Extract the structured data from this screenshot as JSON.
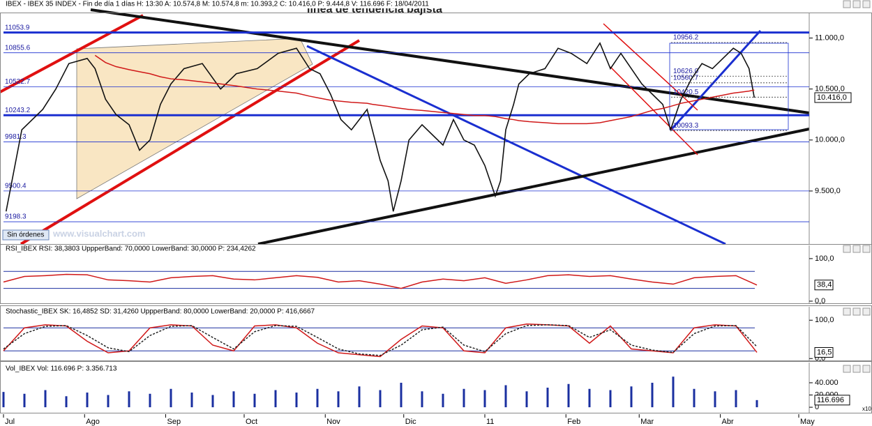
{
  "orders": "Sin órdenes",
  "watermark": "www.visualchart.com",
  "x_scale_note": "x10",
  "chart_data": [
    {
      "type": "line",
      "title": "IBEX - IBEX 35 INDEX - Fin de día 1 días H: 13:30 A: 10.574,8 M: 10.574,8 m: 10.393,2 C: 10.416,0 P: 9.444,8 V: 116.696 F: 18/04/2011",
      "annotation": "línea de tendencia bajista",
      "xlim": [
        0,
        308
      ],
      "xticks": [
        {
          "value": 0,
          "label": "Jul"
        },
        {
          "value": 31,
          "label": "Ago"
        },
        {
          "value": 62,
          "label": "Sep"
        },
        {
          "value": 92,
          "label": "Oct"
        },
        {
          "value": 123,
          "label": "Nov"
        },
        {
          "value": 153,
          "label": "Dic"
        },
        {
          "value": 184,
          "label": "11"
        },
        {
          "value": 215,
          "label": "Feb"
        },
        {
          "value": 243,
          "label": "Mar"
        },
        {
          "value": 274,
          "label": "Abr"
        },
        {
          "value": 304,
          "label": "May"
        }
      ],
      "ylim": [
        8980,
        11250
      ],
      "yticks": [
        {
          "value": 11000,
          "label": "11.000,0"
        },
        {
          "value": 10500,
          "label": "10.500,0"
        },
        {
          "value": 10000,
          "label": "10.000,0"
        },
        {
          "value": 9500,
          "label": "9.500,0"
        }
      ],
      "x": [
        1,
        7,
        15,
        20,
        25,
        32,
        35,
        39,
        43,
        48,
        52,
        56,
        60,
        64,
        69,
        76,
        83,
        89,
        97,
        105,
        112,
        117,
        121,
        125,
        129,
        133,
        139,
        141,
        144,
        147,
        149,
        152,
        155,
        160,
        164,
        168,
        172,
        176,
        180,
        184,
        188,
        190,
        192,
        195,
        197,
        201,
        207,
        212,
        217,
        223,
        228,
        232,
        236,
        240,
        244,
        248,
        252,
        255,
        259,
        263,
        267,
        271,
        275,
        279,
        282,
        285,
        287
      ],
      "series": [
        {
          "color": "#111111",
          "values": [
            9300,
            10100,
            10300,
            10500,
            10750,
            10800,
            10700,
            10400,
            10250,
            10150,
            9900,
            10000,
            10350,
            10550,
            10700,
            10750,
            10500,
            10650,
            10700,
            10850,
            10900,
            10700,
            10650,
            10450,
            10200,
            10100,
            10300,
            10100,
            9800,
            9600,
            9300,
            9600,
            10000,
            10150,
            10050,
            9950,
            10200,
            10000,
            9950,
            9750,
            9450,
            9600,
            10100,
            10350,
            10550,
            10650,
            10700,
            10900,
            10850,
            10750,
            10950,
            10700,
            10850,
            10700,
            10550,
            10450,
            10350,
            10100,
            10400,
            10600,
            10750,
            10700,
            10800,
            10900,
            10850,
            10700,
            10416
          ]
        },
        {
          "color": "#d01818",
          "values": [
            null,
            null,
            null,
            null,
            null,
            null,
            10830,
            10760,
            10720,
            10690,
            10670,
            10650,
            10620,
            10600,
            10590,
            10570,
            10550,
            10530,
            10500,
            10480,
            10460,
            10430,
            10410,
            10390,
            10380,
            10370,
            10360,
            10350,
            10340,
            10330,
            10320,
            10310,
            10300,
            10290,
            10280,
            10270,
            10260,
            10250,
            10240,
            10240,
            10230,
            10220,
            10210,
            10200,
            10190,
            10180,
            10170,
            10160,
            10160,
            10160,
            10170,
            10190,
            10210,
            10230,
            10260,
            10290,
            10310,
            10330,
            10360,
            10380,
            10400,
            10420,
            10440,
            10460,
            10470,
            10480,
            10490
          ]
        }
      ],
      "levels": [
        {
          "value": 11053.9,
          "label": "11053.9",
          "thick": true
        },
        {
          "value": 10855.6,
          "label": "10855.6",
          "thick": false
        },
        {
          "value": 10522.7,
          "label": "10522.7",
          "thick": false
        },
        {
          "value": 10243.2,
          "label": "10243.2",
          "thick": true
        },
        {
          "value": 9981.3,
          "label": "9981.3",
          "thick": false
        },
        {
          "value": 9500.4,
          "label": "9500.4",
          "thick": false
        },
        {
          "value": 9198.3,
          "label": "9198.3",
          "thick": false
        }
      ],
      "fib_levels": [
        {
          "value": 10956.2,
          "label": "10956.2"
        },
        {
          "value": 10626.0,
          "label": "10626.0"
        },
        {
          "value": 10560.7,
          "label": "10560.7"
        },
        {
          "value": 10420.5,
          "label": "10420.5"
        },
        {
          "value": 10093.3,
          "label": "10093.3"
        }
      ],
      "last_label": "10.416,0"
    },
    {
      "type": "line",
      "title": "RSI_IBEX RSI: 38,3803 UppperBand: 70,0000 LowerBand: 30,0000 P: 234,4262",
      "xlim": [
        0,
        308
      ],
      "ylim": [
        -5,
        131
      ],
      "yticks": [
        {
          "value": 100,
          "label": "100,0"
        },
        {
          "value": 0,
          "label": "0,0"
        }
      ],
      "bands": [
        70,
        30
      ],
      "x": [
        0,
        8,
        16,
        24,
        32,
        40,
        48,
        56,
        64,
        72,
        80,
        88,
        96,
        104,
        112,
        120,
        128,
        136,
        144,
        152,
        160,
        168,
        176,
        184,
        192,
        200,
        208,
        216,
        224,
        232,
        240,
        248,
        256,
        264,
        272,
        280,
        288
      ],
      "series": [
        {
          "color": "#d01818",
          "values": [
            45,
            58,
            60,
            63,
            62,
            50,
            48,
            45,
            55,
            58,
            60,
            52,
            50,
            55,
            60,
            56,
            45,
            48,
            40,
            30,
            45,
            52,
            48,
            55,
            42,
            50,
            60,
            62,
            58,
            60,
            52,
            45,
            40,
            55,
            58,
            60,
            38
          ]
        }
      ],
      "last_label": "38,4"
    },
    {
      "type": "line",
      "title": "Stochastic_IBEX SK: 16,4852 SD: 31,4260 UppperBand: 80,0000 LowerBand: 20,0000 P: 416,6667",
      "xlim": [
        0,
        308
      ],
      "ylim": [
        -5,
        135
      ],
      "yticks": [
        {
          "value": 100,
          "label": "100,0"
        },
        {
          "value": 0,
          "label": "0,0"
        }
      ],
      "bands": [
        80,
        20
      ],
      "x": [
        0,
        8,
        16,
        24,
        32,
        40,
        48,
        56,
        64,
        72,
        80,
        88,
        96,
        104,
        112,
        120,
        128,
        136,
        144,
        152,
        160,
        168,
        176,
        184,
        192,
        200,
        208,
        216,
        224,
        232,
        240,
        248,
        256,
        264,
        272,
        280,
        288
      ],
      "series": [
        {
          "color": "#d01818",
          "values": [
            20,
            80,
            88,
            85,
            45,
            15,
            20,
            80,
            88,
            85,
            35,
            20,
            85,
            88,
            80,
            40,
            15,
            10,
            5,
            50,
            85,
            80,
            20,
            15,
            80,
            90,
            88,
            85,
            40,
            85,
            25,
            20,
            15,
            80,
            88,
            85,
            16
          ]
        },
        {
          "color": "#222222",
          "dashed": true,
          "values": [
            25,
            65,
            84,
            86,
            60,
            28,
            18,
            60,
            84,
            86,
            55,
            25,
            70,
            86,
            84,
            55,
            25,
            12,
            8,
            35,
            75,
            82,
            35,
            18,
            65,
            86,
            88,
            86,
            55,
            75,
            35,
            22,
            16,
            65,
            85,
            86,
            31
          ]
        }
      ],
      "last_label": "16,5"
    },
    {
      "type": "bar",
      "title": "Vol_IBEX Vol: 116.696 P: 3.356.713",
      "xlim": [
        0,
        308
      ],
      "ylim": [
        -9000,
        73000
      ],
      "yticks": [
        {
          "value": 40000,
          "label": "40.000"
        },
        {
          "value": 20000,
          "label": "20.000"
        },
        0
      ],
      "color": "#1a2fa0",
      "x": [
        0,
        8,
        16,
        24,
        32,
        40,
        48,
        56,
        64,
        72,
        80,
        88,
        96,
        104,
        112,
        120,
        128,
        136,
        144,
        152,
        160,
        168,
        176,
        184,
        192,
        200,
        208,
        216,
        224,
        232,
        240,
        248,
        256,
        264,
        272,
        280,
        288
      ],
      "values": [
        25000,
        22000,
        28000,
        18000,
        24000,
        20000,
        26000,
        22000,
        30000,
        24000,
        20000,
        26000,
        22000,
        28000,
        24000,
        30000,
        26000,
        34000,
        28000,
        40000,
        26000,
        22000,
        30000,
        28000,
        36000,
        26000,
        32000,
        38000,
        30000,
        28000,
        34000,
        40000,
        50000,
        30000,
        26000,
        28000,
        11670
      ],
      "last_label": "116.696"
    }
  ]
}
